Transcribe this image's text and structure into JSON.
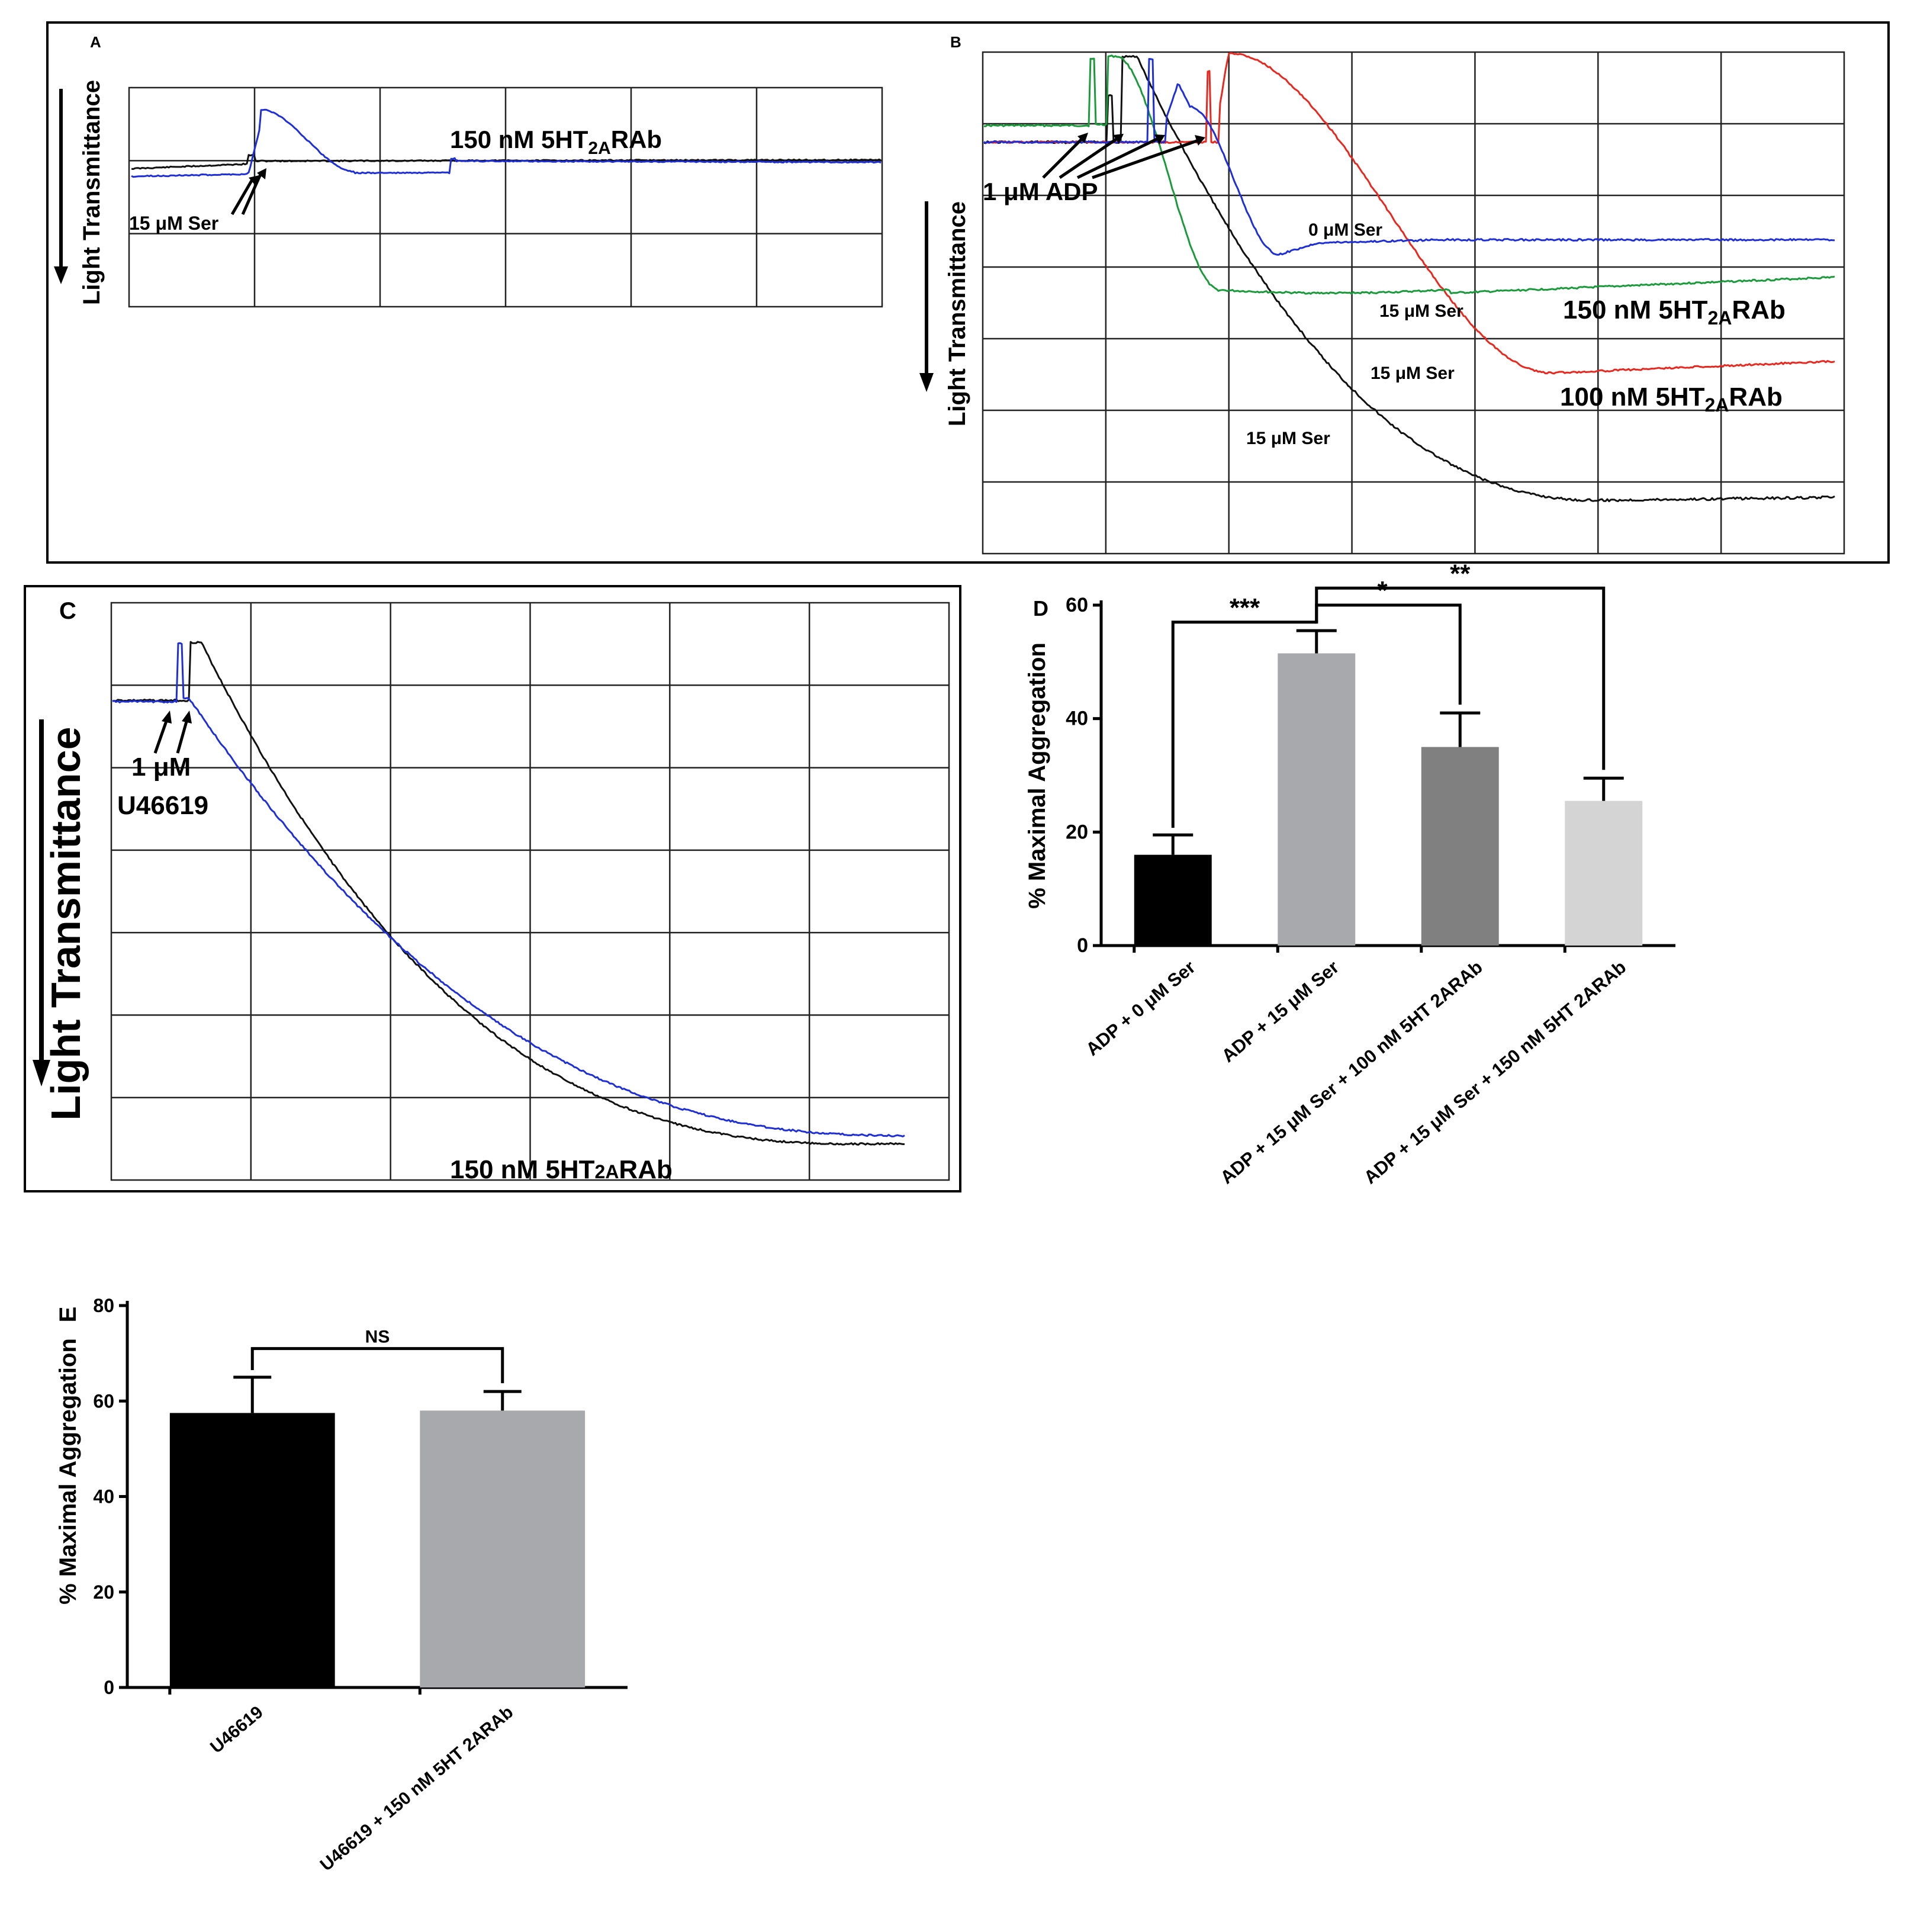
{
  "panel_a": {
    "letter": "A",
    "ylabel": "Light Transmittance",
    "annotation_main": "150 nM 5HT",
    "annotation_main_sub": "2A",
    "annotation_main_suffix": "RAb",
    "annotation_agonist": "15 μM Ser"
  },
  "panel_b": {
    "letter": "B",
    "ylabel": "Light Transmittance",
    "agonist": "1 μM ADP",
    "label_0ser": "0 μM Ser",
    "label_15ser_a": "15 μM Ser",
    "label_15ser_b": "15 μM Ser",
    "label_15ser_c": "15 μM Ser",
    "label_150_main": "150 nM 5HT",
    "label_150_sub": "2A",
    "label_150_suffix": "RAb",
    "label_100_main": "100 nM 5HT",
    "label_100_sub": "2A",
    "label_100_suffix": "RAb",
    "colors": {
      "blue": "#1f2fd8",
      "green": "#1a9a3a",
      "red": "#e8281e",
      "black": "#111111"
    }
  },
  "panel_c": {
    "letter": "C",
    "ylabel": "Light Transmittance",
    "agonist_line1": "1 μM",
    "agonist_line2": "U46619",
    "annotation_main": "150 nM 5HT",
    "annotation_main_sub": "2A",
    "annotation_main_suffix": "RAb"
  },
  "chart_data": [
    {
      "type": "bar",
      "panel": "D",
      "letter": "D",
      "title": "",
      "ylabel": "% Maximal Aggregation",
      "ylim": [
        0,
        60
      ],
      "yticks": [
        "0",
        "20",
        "40",
        "60"
      ],
      "categories": [
        "ADP + 0 μM Ser",
        "ADP + 15 μM Ser",
        "ADP + 15 μM Ser + 100 nM 5HT 2ARAb",
        "ADP + 15 μM Ser + 150 nM 5HT 2ARAb"
      ],
      "values": [
        16,
        51.5,
        35,
        25.5
      ],
      "errors": [
        3.5,
        4,
        6,
        4
      ],
      "colors": [
        "#000000",
        "#a7a9ac",
        "#808080",
        "#d4d4d4"
      ],
      "significance": [
        {
          "from": 0,
          "to": 1,
          "label": "***"
        },
        {
          "from": 1,
          "to": 2,
          "label": "*"
        },
        {
          "from": 1,
          "to": 3,
          "label": "**"
        }
      ]
    },
    {
      "type": "bar",
      "panel": "E",
      "letter": "E",
      "title": "",
      "ylabel": "% Maximal Aggregation",
      "ylim": [
        0,
        80
      ],
      "yticks": [
        "0",
        "20",
        "40",
        "60",
        "80"
      ],
      "categories": [
        "U46619",
        "U46619 + 150 nM 5HT 2ARAb"
      ],
      "values": [
        57.5,
        58
      ],
      "errors": [
        7.5,
        4
      ],
      "colors": [
        "#000000",
        "#a7a9ac"
      ],
      "significance": [
        {
          "from": 0,
          "to": 1,
          "label": "NS"
        }
      ]
    }
  ]
}
